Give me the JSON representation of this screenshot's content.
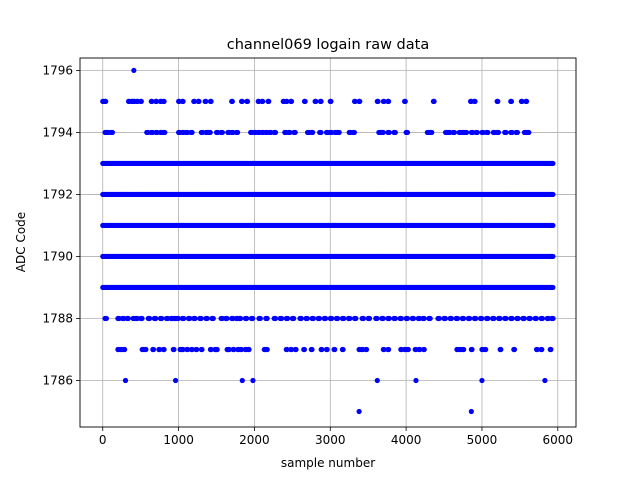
{
  "chart_data": {
    "type": "scatter",
    "title": "channel069 logain raw data",
    "xlabel": "sample number",
    "ylabel": "ADC Code",
    "xlim": [
      -300,
      6240
    ],
    "ylim": [
      1784.5,
      1796.4
    ],
    "xticks": [
      0,
      1000,
      2000,
      3000,
      4000,
      5000,
      6000
    ],
    "yticks": [
      1786,
      1788,
      1790,
      1792,
      1794,
      1796
    ],
    "xtick_labels": [
      "0",
      "1000",
      "2000",
      "3000",
      "4000",
      "5000",
      "6000"
    ],
    "ytick_labels": [
      "1786",
      "1788",
      "1790",
      "1792",
      "1794",
      "1796"
    ],
    "grid": true,
    "marker_color": "#0000ff",
    "x_range": [
      0,
      5940
    ],
    "series": [
      {
        "dense_levels": [
          1789,
          1790,
          1791,
          1792,
          1793
        ],
        "level_1796_x": [
          410
        ],
        "level_1795_x": [
          0,
          30,
          340,
          380,
          410,
          450,
          500,
          640,
          700,
          760,
          800,
          1000,
          1050,
          1200,
          1260,
          1350,
          1420,
          1700,
          1830,
          1900,
          2050,
          2100,
          2180,
          2380,
          2420,
          2480,
          2660,
          2800,
          2870,
          3000,
          3320,
          3380,
          3620,
          3700,
          3760,
          3980,
          4360,
          4850,
          4900,
          5200,
          5380,
          5520,
          5580
        ],
        "level_1794_x": [
          30,
          60,
          110,
          580,
          640,
          700,
          760,
          800,
          1000,
          1050,
          1100,
          1160,
          1300,
          1360,
          1400,
          1500,
          1560,
          1650,
          1700,
          1760,
          1950,
          2000,
          2050,
          2100,
          2150,
          2200,
          2260,
          2400,
          2450,
          2520,
          2700,
          2750,
          2860,
          2950,
          3000,
          3060,
          3100,
          3250,
          3300,
          3640,
          3680,
          3760,
          3840,
          4000,
          4280,
          4320,
          4520,
          4560,
          4620,
          4700,
          4740,
          4780,
          4860,
          4920,
          5000,
          5060,
          5150,
          5200,
          5300,
          5380,
          5450,
          5560,
          5600
        ],
        "level_1788_x": [
          30,
          200,
          260,
          320,
          400,
          440,
          500,
          600,
          680,
          760,
          840,
          900,
          940,
          980,
          1050,
          1130,
          1200,
          1280,
          1360,
          1440,
          1560,
          1620,
          1700,
          1760,
          1800,
          1880,
          1960,
          2060,
          2150,
          2260,
          2340,
          2420,
          2500,
          2600,
          2680,
          2760,
          2840,
          2920,
          3000,
          3080,
          3160,
          3240,
          3320,
          3420,
          3500,
          3600,
          3680,
          3760,
          3840,
          3920,
          4000,
          4080,
          4160,
          4220,
          4300,
          4420,
          4500,
          4580,
          4660,
          4740,
          4820,
          4900,
          4980,
          5060,
          5140,
          5220,
          5300,
          5380,
          5460,
          5540,
          5620,
          5700,
          5780,
          5860,
          5920
        ],
        "level_1787_x": [
          200,
          240,
          280,
          520,
          560,
          660,
          740,
          800,
          930,
          1020,
          1050,
          1110,
          1170,
          1230,
          1300,
          1420,
          1480,
          1500,
          1640,
          1660,
          1720,
          1780,
          1820,
          1880,
          1920,
          2130,
          2160,
          2420,
          2480,
          2540,
          2650,
          2750,
          2880,
          2950,
          3050,
          3160,
          3380,
          3420,
          3470,
          3700,
          3760,
          3930,
          3980,
          4020,
          4120,
          4170,
          4230,
          4670,
          4710,
          4750,
          4860,
          5000,
          5040,
          5240,
          5420,
          5720,
          5780,
          5900
        ],
        "level_1786_x": [
          300,
          960,
          1840,
          1980,
          3620,
          4130,
          5000,
          5830
        ],
        "level_1785_x": [
          3380,
          4860
        ]
      }
    ]
  }
}
